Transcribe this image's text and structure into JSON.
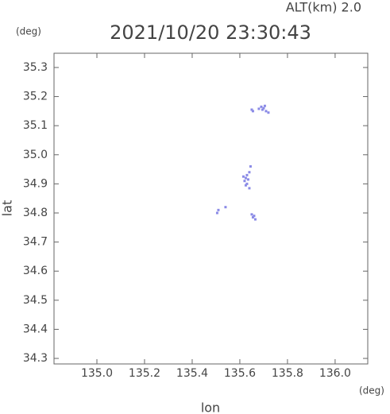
{
  "chart_data": {
    "type": "scatter",
    "title": "2021/10/20 23:30:43",
    "subtitle": "ALT(km) 2.0",
    "x_label": "lon",
    "y_label": "lat",
    "x_unit": "(deg)",
    "y_unit": "(deg)",
    "color": "#8a8ae6",
    "xlim": [
      134.82,
      136.137
    ],
    "ylim": [
      34.281,
      35.349
    ],
    "xticks": [
      {
        "value": 135,
        "label": "135.0"
      },
      135.2,
      135.4,
      135.6,
      135.8,
      {
        "value": 136,
        "label": "136.0"
      }
    ],
    "yticks": [
      34.3,
      34.4,
      34.5,
      34.6,
      34.7,
      34.8,
      34.9,
      {
        "value": 35,
        "label": "35.0"
      },
      35.1,
      35.2,
      35.3
    ],
    "x": [
      135.69,
      135.7,
      135.71,
      135.72,
      135.695,
      135.705,
      135.65,
      135.655,
      135.68,
      135.625,
      135.62,
      135.63,
      135.64,
      135.645,
      135.63,
      135.64,
      135.615,
      135.635,
      135.625,
      135.505,
      135.51,
      135.54,
      135.65,
      135.655,
      135.66,
      135.665
    ],
    "y": [
      35.165,
      35.16,
      35.15,
      35.145,
      35.155,
      35.168,
      35.155,
      35.15,
      35.158,
      34.92,
      34.91,
      34.93,
      34.94,
      34.96,
      34.9,
      34.885,
      34.925,
      34.915,
      34.895,
      34.8,
      34.81,
      34.82,
      34.795,
      34.785,
      34.79,
      34.778
    ]
  }
}
